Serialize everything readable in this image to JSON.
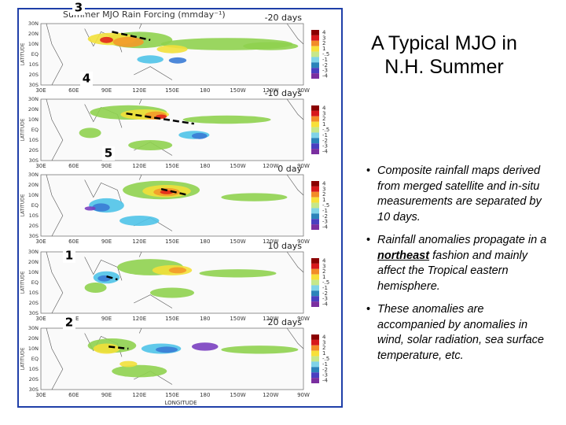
{
  "title": "A Typical MJO in N.H. Summer",
  "bullets": [
    {
      "text": "Composite rainfall maps derived from merged satellite and in-situ measurements are separated by 10 days."
    },
    {
      "before": "Rainfall anomalies propagate in a ",
      "emphasis": "northeast",
      "after": " fashion and mainly affect the Tropical eastern hemisphere."
    },
    {
      "text": "These anomalies are accompanied by anomalies in wind, solar radiation, sea surface temperature, etc."
    }
  ],
  "figure": {
    "title": "Summer MJO Rain Forcing (mmday⁻¹)",
    "y_axis_label": "LATITUDE",
    "x_axis_label": "LONGITUDE",
    "lat_labels": [
      "30N",
      "20N",
      "10N",
      "EQ",
      "10S",
      "20S",
      "30S"
    ],
    "lon_labels": [
      "30E",
      "60E",
      "90E",
      "120E",
      "150E",
      "180",
      "150W",
      "120W",
      "90W"
    ],
    "colorbar_labels": [
      "4",
      "3",
      "2",
      "1",
      "-.5",
      "-1",
      "-2",
      "-3",
      "-4"
    ],
    "panels": [
      {
        "lag": "-20 days",
        "phase": "3"
      },
      {
        "lag": "-10 days",
        "phase": "4"
      },
      {
        "lag": "0 day",
        "phase": "5"
      },
      {
        "lag": "10 days",
        "phase": "1"
      },
      {
        "lag": "20 days",
        "phase": "2"
      }
    ]
  }
}
